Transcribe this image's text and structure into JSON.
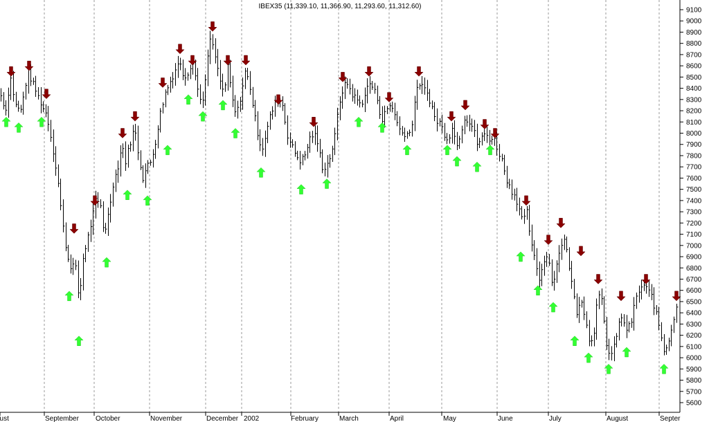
{
  "chart_data": {
    "type": "bar",
    "style": "ohlc",
    "title": "IBEX35 (11,339.10, 11,366.90, 11,293.60, 11,312.60)",
    "ylim": [
      5500,
      9150
    ],
    "y_ticks": [
      5600,
      5700,
      5800,
      5900,
      6000,
      6100,
      6200,
      6300,
      6400,
      6500,
      6600,
      6700,
      6800,
      6900,
      7000,
      7100,
      7200,
      7300,
      7400,
      7500,
      7600,
      7700,
      7800,
      7900,
      8000,
      8100,
      8200,
      8300,
      8400,
      8500,
      8600,
      8700,
      8800,
      8900,
      9000,
      9100
    ],
    "months": [
      "gust",
      "September",
      "October",
      "November",
      "December",
      "2002",
      "February",
      "March",
      "April",
      "May",
      "June",
      "July",
      "August",
      "Septer"
    ],
    "grid": "vertical dashed at month boundaries",
    "colors": {
      "up_signal": "#33ff33",
      "down_signal": "#8b0000",
      "bars": "#000000",
      "grid": "#aaaaaa"
    },
    "price_path": [
      [
        0,
        8350
      ],
      [
        3,
        8300
      ],
      [
        8,
        8200
      ],
      [
        15,
        8500
      ],
      [
        22,
        8250
      ],
      [
        30,
        8200
      ],
      [
        40,
        8550
      ],
      [
        50,
        8400
      ],
      [
        60,
        8250
      ],
      [
        68,
        8150
      ],
      [
        75,
        7900
      ],
      [
        83,
        7600
      ],
      [
        90,
        7200
      ],
      [
        97,
        6900
      ],
      [
        103,
        6800
      ],
      [
        108,
        6850
      ],
      [
        114,
        6500
      ],
      [
        120,
        6900
      ],
      [
        126,
        7050
      ],
      [
        133,
        7250
      ],
      [
        138,
        7400
      ],
      [
        145,
        7350
      ],
      [
        150,
        7100
      ],
      [
        157,
        7300
      ],
      [
        163,
        7550
      ],
      [
        170,
        7700
      ],
      [
        176,
        7900
      ],
      [
        181,
        7750
      ],
      [
        187,
        7900
      ],
      [
        194,
        8050
      ],
      [
        200,
        7800
      ],
      [
        206,
        7600
      ],
      [
        212,
        7700
      ],
      [
        218,
        7750
      ],
      [
        225,
        7950
      ],
      [
        232,
        8200
      ],
      [
        238,
        8350
      ],
      [
        245,
        8450
      ],
      [
        252,
        8550
      ],
      [
        258,
        8650
      ],
      [
        265,
        8500
      ],
      [
        272,
        8550
      ],
      [
        278,
        8650
      ],
      [
        285,
        8400
      ],
      [
        291,
        8250
      ],
      [
        297,
        8500
      ],
      [
        303,
        8850
      ],
      [
        310,
        8700
      ],
      [
        316,
        8500
      ],
      [
        323,
        8350
      ],
      [
        329,
        8600
      ],
      [
        335,
        8300
      ],
      [
        341,
        8150
      ],
      [
        348,
        8350
      ],
      [
        354,
        8550
      ],
      [
        360,
        8450
      ],
      [
        366,
        8200
      ],
      [
        372,
        8000
      ],
      [
        378,
        7850
      ],
      [
        384,
        8000
      ],
      [
        390,
        8150
      ],
      [
        396,
        8250
      ],
      [
        402,
        8300
      ],
      [
        408,
        8250
      ],
      [
        414,
        8000
      ],
      [
        420,
        7900
      ],
      [
        428,
        7800
      ],
      [
        434,
        7750
      ],
      [
        440,
        7800
      ],
      [
        447,
        7950
      ],
      [
        453,
        8000
      ],
      [
        459,
        7900
      ],
      [
        465,
        7700
      ],
      [
        471,
        7700
      ],
      [
        477,
        7800
      ],
      [
        483,
        7950
      ],
      [
        489,
        8250
      ],
      [
        495,
        8400
      ],
      [
        501,
        8450
      ],
      [
        508,
        8350
      ],
      [
        515,
        8300
      ],
      [
        521,
        8250
      ],
      [
        527,
        8350
      ],
      [
        533,
        8450
      ],
      [
        539,
        8400
      ],
      [
        545,
        8300
      ],
      [
        551,
        8100
      ],
      [
        557,
        8200
      ],
      [
        563,
        8250
      ],
      [
        569,
        8200
      ],
      [
        575,
        8050
      ],
      [
        581,
        8000
      ],
      [
        587,
        8000
      ],
      [
        593,
        8000
      ],
      [
        599,
        8300
      ],
      [
        605,
        8450
      ],
      [
        611,
        8400
      ],
      [
        617,
        8350
      ],
      [
        623,
        8250
      ],
      [
        629,
        8100
      ],
      [
        635,
        8100
      ],
      [
        641,
        8000
      ],
      [
        647,
        7950
      ],
      [
        653,
        8050
      ],
      [
        659,
        7900
      ],
      [
        665,
        8000
      ],
      [
        671,
        8150
      ],
      [
        677,
        8100
      ],
      [
        683,
        8050
      ],
      [
        689,
        7900
      ],
      [
        695,
        7950
      ],
      [
        701,
        8000
      ],
      [
        707,
        7950
      ],
      [
        713,
        7950
      ],
      [
        719,
        7850
      ],
      [
        725,
        7750
      ],
      [
        731,
        7600
      ],
      [
        737,
        7500
      ],
      [
        743,
        7450
      ],
      [
        749,
        7350
      ],
      [
        755,
        7200
      ],
      [
        761,
        7300
      ],
      [
        767,
        7000
      ],
      [
        773,
        6850
      ],
      [
        779,
        6700
      ],
      [
        785,
        6850
      ],
      [
        791,
        6950
      ],
      [
        797,
        6650
      ],
      [
        803,
        6800
      ],
      [
        809,
        7000
      ],
      [
        815,
        7050
      ],
      [
        821,
        6850
      ],
      [
        827,
        6600
      ],
      [
        833,
        6400
      ],
      [
        839,
        6550
      ],
      [
        845,
        6350
      ],
      [
        851,
        6150
      ],
      [
        857,
        6200
      ],
      [
        863,
        6550
      ],
      [
        869,
        6500
      ],
      [
        875,
        6150
      ],
      [
        881,
        6000
      ],
      [
        887,
        6100
      ],
      [
        893,
        6300
      ],
      [
        899,
        6350
      ],
      [
        905,
        6250
      ],
      [
        911,
        6300
      ],
      [
        917,
        6500
      ],
      [
        923,
        6600
      ],
      [
        929,
        6650
      ],
      [
        935,
        6600
      ],
      [
        941,
        6550
      ],
      [
        947,
        6400
      ],
      [
        953,
        6250
      ],
      [
        959,
        6050
      ],
      [
        965,
        6150
      ],
      [
        971,
        6300
      ],
      [
        977,
        6450
      ],
      [
        982,
        6500
      ]
    ],
    "up_signals": [
      [
        9,
        8100
      ],
      [
        27,
        8050
      ],
      [
        60,
        8100
      ],
      [
        100,
        6550
      ],
      [
        114,
        6150
      ],
      [
        154,
        6850
      ],
      [
        184,
        7450
      ],
      [
        213,
        7400
      ],
      [
        242,
        7850
      ],
      [
        272,
        8300
      ],
      [
        293,
        8150
      ],
      [
        322,
        8250
      ],
      [
        340,
        8000
      ],
      [
        377,
        7650
      ],
      [
        435,
        7500
      ],
      [
        472,
        7550
      ],
      [
        518,
        8100
      ],
      [
        552,
        8050
      ],
      [
        588,
        7850
      ],
      [
        646,
        7850
      ],
      [
        660,
        7750
      ],
      [
        689,
        7700
      ],
      [
        708,
        7850
      ],
      [
        752,
        6900
      ],
      [
        777,
        6600
      ],
      [
        799,
        6450
      ],
      [
        830,
        6150
      ],
      [
        850,
        6000
      ],
      [
        879,
        5900
      ],
      [
        905,
        6050
      ],
      [
        959,
        5900
      ]
    ],
    "down_signals": [
      [
        16,
        8550
      ],
      [
        42,
        8600
      ],
      [
        67,
        8350
      ],
      [
        107,
        7150
      ],
      [
        137,
        7400
      ],
      [
        177,
        8000
      ],
      [
        195,
        8150
      ],
      [
        235,
        8450
      ],
      [
        260,
        8750
      ],
      [
        278,
        8650
      ],
      [
        307,
        8950
      ],
      [
        329,
        8650
      ],
      [
        355,
        8650
      ],
      [
        402,
        8300
      ],
      [
        453,
        8100
      ],
      [
        495,
        8500
      ],
      [
        533,
        8550
      ],
      [
        562,
        8320
      ],
      [
        605,
        8550
      ],
      [
        652,
        8150
      ],
      [
        672,
        8250
      ],
      [
        700,
        8080
      ],
      [
        715,
        8000
      ],
      [
        760,
        7400
      ],
      [
        792,
        7050
      ],
      [
        810,
        7200
      ],
      [
        839,
        6950
      ],
      [
        864,
        6700
      ],
      [
        897,
        6550
      ],
      [
        933,
        6700
      ],
      [
        977,
        6550
      ]
    ]
  }
}
